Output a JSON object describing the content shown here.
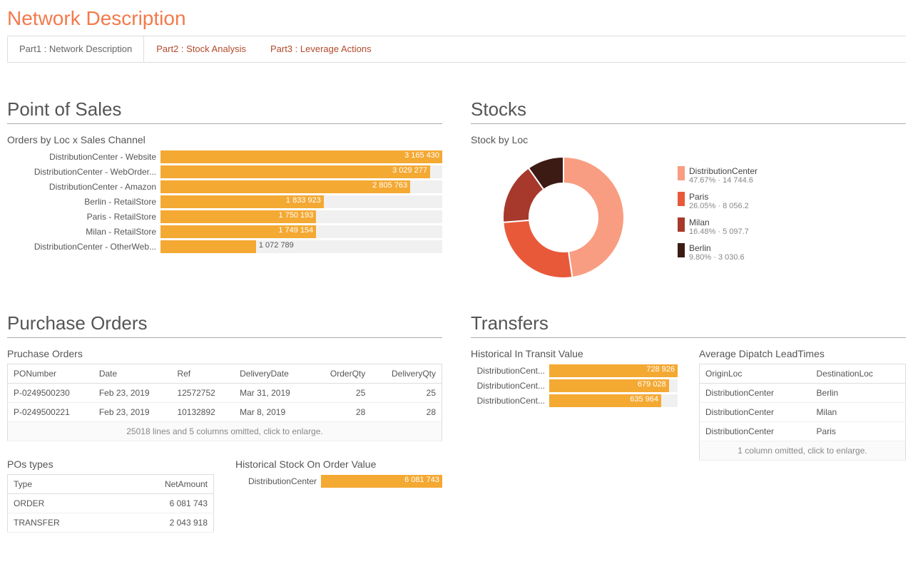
{
  "page_title": "Network Description",
  "tabs": [
    {
      "label": "Part1 : Network Description",
      "active": true
    },
    {
      "label": "Part2 : Stock Analysis",
      "active": false
    },
    {
      "label": "Part3 : Leverage Actions",
      "active": false
    }
  ],
  "pos": {
    "title": "Point of Sales",
    "chart_title": "Orders by Loc x Sales Channel",
    "chart": {
      "type": "bar",
      "bar_color": "#f4a933",
      "track_color": "#f0f0f0",
      "max": 3165430,
      "rows": [
        {
          "label": "DistributionCenter - Website",
          "value": 3165430,
          "display": "3 165 430"
        },
        {
          "label": "DistributionCenter - WebOrder...",
          "value": 3029277,
          "display": "3 029 277"
        },
        {
          "label": "DistributionCenter - Amazon",
          "value": 2805763,
          "display": "2 805 763"
        },
        {
          "label": "Berlin - RetailStore",
          "value": 1833923,
          "display": "1 833 923"
        },
        {
          "label": "Paris - RetailStore",
          "value": 1750193,
          "display": "1 750 193"
        },
        {
          "label": "Milan - RetailStore",
          "value": 1749154,
          "display": "1 749 154"
        },
        {
          "label": "DistributionCenter - OtherWeb...",
          "value": 1072789,
          "display": "1 072 789"
        }
      ]
    }
  },
  "stocks": {
    "title": "Stocks",
    "chart_title": "Stock by Loc",
    "donut": {
      "type": "pie",
      "slices": [
        {
          "label": "DistributionCenter",
          "pct": 47.67,
          "val": "14 744.6",
          "color": "#f89d81"
        },
        {
          "label": "Paris",
          "pct": 26.05,
          "val": "8 056.2",
          "color": "#e8593a"
        },
        {
          "label": "Milan",
          "pct": 16.48,
          "val": "5 097.7",
          "color": "#a6392b"
        },
        {
          "label": "Berlin",
          "pct": 9.8,
          "val": "3 030.6",
          "color": "#3b1b14"
        }
      ]
    }
  },
  "purchase": {
    "title": "Purchase Orders",
    "table_title": "Pruchase Orders",
    "columns": [
      "PONumber",
      "Date",
      "Ref",
      "DeliveryDate",
      "OrderQty",
      "DeliveryQty"
    ],
    "rows": [
      [
        "P-0249500230",
        "Feb 23, 2019",
        "12572752",
        "Mar 31, 2019",
        "25",
        "25"
      ],
      [
        "P-0249500221",
        "Feb 23, 2019",
        "10132892",
        "Mar 8, 2019",
        "28",
        "28"
      ]
    ],
    "omitted": "25018 lines and 5 columns omitted, click to enlarge."
  },
  "po_types": {
    "title": "POs types",
    "columns": [
      "Type",
      "NetAmount"
    ],
    "rows": [
      [
        "ORDER",
        "6 081 743"
      ],
      [
        "TRANSFER",
        "2 043 918"
      ]
    ]
  },
  "hist_stock": {
    "title": "Historical Stock On Order Value",
    "chart": {
      "type": "bar",
      "bar_color": "#f4a933",
      "max": 6081743,
      "rows": [
        {
          "label": "DistributionCenter",
          "value": 6081743,
          "display": "6 081 743"
        }
      ]
    }
  },
  "transfers": {
    "title": "Transfers",
    "transit_title": "Historical In Transit Value",
    "transit_chart": {
      "type": "bar",
      "bar_color": "#f4a933",
      "max": 728926,
      "rows": [
        {
          "label": "DistributionCent...",
          "value": 728926,
          "display": "728 926"
        },
        {
          "label": "DistributionCent...",
          "value": 679028,
          "display": "679 028"
        },
        {
          "label": "DistributionCent...",
          "value": 635964,
          "display": "635 964"
        }
      ]
    },
    "leadtimes_title": "Average Dipatch LeadTimes",
    "leadtimes_columns": [
      "OriginLoc",
      "DestinationLoc"
    ],
    "leadtimes_rows": [
      [
        "DistributionCenter",
        "Berlin"
      ],
      [
        "DistributionCenter",
        "Milan"
      ],
      [
        "DistributionCenter",
        "Paris"
      ]
    ],
    "leadtimes_omitted": "1 column omitted, click to enlarge."
  }
}
